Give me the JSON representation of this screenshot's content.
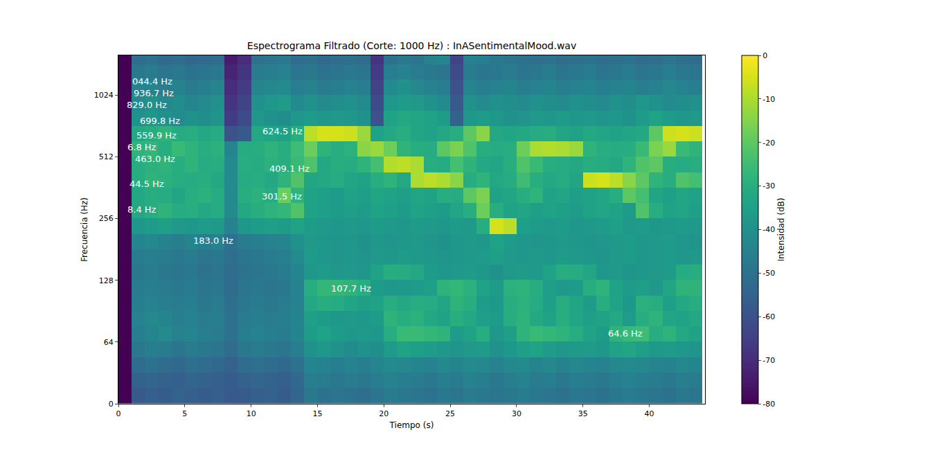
{
  "chart_data": {
    "type": "heatmap",
    "title": "Espectrograma Filtrado (Corte: 1000 Hz) : InASentimentalMood.wav",
    "x_label": "Tiempo (s)",
    "y_label": "Frecuencia (Hz)",
    "log": "y",
    "xlim": [
      0,
      44.2
    ],
    "ylim": [
      0,
      1600
    ],
    "xticks": [
      0,
      5,
      10,
      15,
      20,
      25,
      30,
      35,
      40
    ],
    "yticks": [
      0,
      64,
      128,
      256,
      512,
      1024
    ],
    "colorbar": {
      "label": "Intensidad (dB)",
      "range": [
        -80,
        0
      ],
      "ticks": [
        -80,
        -70,
        -60,
        -50,
        -40,
        -30,
        -20,
        -10,
        0
      ]
    },
    "x": [
      0.5,
      1.5,
      2.5,
      3.5,
      4.5,
      5.5,
      6.5,
      7.5,
      8.5,
      9.5,
      10.5,
      11.5,
      12.5,
      13.5,
      14.5,
      15.5,
      16.5,
      17.5,
      18.5,
      19.5,
      20.5,
      21.5,
      22.5,
      23.5,
      24.5,
      25.5,
      26.5,
      27.5,
      28.5,
      29.5,
      30.5,
      31.5,
      32.5,
      33.5,
      34.5,
      35.5,
      36.5,
      37.5,
      38.5,
      39.5,
      40.5,
      41.5,
      42.5,
      43.5
    ],
    "y": [
      8,
      24,
      40,
      56,
      69.8,
      83.0,
      98.7,
      117.4,
      139.6,
      166.0,
      197.4,
      234.8,
      279.2,
      332.0,
      394.8,
      469.5,
      558.4,
      664.0,
      789.6,
      939.0,
      1116.7,
      1328.0,
      1579.3
    ],
    "values": [
      [
        -80,
        -58,
        -56,
        -57,
        -55,
        -56,
        -57,
        -56,
        -58,
        -57,
        -56,
        -55,
        -57,
        -54,
        -48,
        -50,
        -49,
        -50,
        -51,
        -49,
        -47,
        -48,
        -49,
        -50,
        -48,
        -49,
        -47,
        -48,
        -49,
        -48,
        -47,
        -48,
        -49,
        -50,
        -48,
        -49,
        -50,
        -48,
        -47,
        -48,
        -49,
        -50,
        -48,
        -49
      ],
      [
        -80,
        -55,
        -54,
        -55,
        -56,
        -54,
        -55,
        -56,
        -57,
        -55,
        -54,
        -55,
        -56,
        -53,
        -46,
        -47,
        -48,
        -47,
        -48,
        -46,
        -45,
        -46,
        -47,
        -48,
        -46,
        -47,
        -45,
        -46,
        -48,
        -46,
        -45,
        -47,
        -46,
        -48,
        -46,
        -47,
        -48,
        -46,
        -45,
        -46,
        -47,
        -48,
        -46,
        -47
      ],
      [
        -80,
        -52,
        -50,
        -52,
        -53,
        -51,
        -52,
        -53,
        -55,
        -52,
        -51,
        -52,
        -53,
        -50,
        -44,
        -45,
        -46,
        -45,
        -46,
        -44,
        -42,
        -43,
        -44,
        -45,
        -43,
        -44,
        -42,
        -43,
        -45,
        -43,
        -42,
        -44,
        -43,
        -45,
        -43,
        -44,
        -45,
        -43,
        -42,
        -43,
        -44,
        -45,
        -43,
        -44
      ],
      [
        -80,
        -48,
        -46,
        -47,
        -49,
        -47,
        -48,
        -49,
        -52,
        -48,
        -47,
        -48,
        -49,
        -46,
        -40,
        -38,
        -40,
        -42,
        -40,
        -41,
        -36,
        -34,
        -35,
        -36,
        -38,
        -39,
        -37,
        -36,
        -40,
        -38,
        -35,
        -34,
        -36,
        -38,
        -37,
        -36,
        -38,
        -34,
        -33,
        -35,
        -37,
        -36,
        -38,
        -39
      ],
      [
        -80,
        -46,
        -44,
        -42,
        -45,
        -44,
        -46,
        -47,
        -50,
        -46,
        -45,
        -46,
        -47,
        -44,
        -36,
        -34,
        -36,
        -38,
        -37,
        -38,
        -30,
        -26,
        -26,
        -27,
        -28,
        -36,
        -34,
        -30,
        -38,
        -35,
        -28,
        -26,
        -27,
        -28,
        -30,
        -34,
        -36,
        -28,
        -26,
        -25,
        -30,
        -28,
        -32,
        -34
      ],
      [
        -80,
        -45,
        -43,
        -44,
        -46,
        -45,
        -47,
        -46,
        -50,
        -47,
        -46,
        -47,
        -46,
        -44,
        -35,
        -36,
        -38,
        -37,
        -38,
        -36,
        -28,
        -30,
        -29,
        -32,
        -34,
        -30,
        -32,
        -35,
        -36,
        -30,
        -28,
        -32,
        -34,
        -30,
        -33,
        -35,
        -34,
        -32,
        -36,
        -30,
        -28,
        -33,
        -34,
        -32
      ],
      [
        -80,
        -46,
        -45,
        -46,
        -47,
        -46,
        -48,
        -47,
        -51,
        -48,
        -47,
        -48,
        -47,
        -45,
        -32,
        -30,
        -31,
        -33,
        -35,
        -34,
        -30,
        -32,
        -30,
        -31,
        -33,
        -28,
        -30,
        -36,
        -38,
        -30,
        -29,
        -31,
        -35,
        -30,
        -33,
        -36,
        -30,
        -34,
        -38,
        -29,
        -30,
        -35,
        -32,
        -30
      ],
      [
        -80,
        -47,
        -46,
        -47,
        -48,
        -47,
        -49,
        -48,
        -52,
        -49,
        -48,
        -49,
        -48,
        -45,
        -30,
        -27,
        -27,
        -28,
        -30,
        -36,
        -38,
        -37,
        -36,
        -35,
        -28,
        -27,
        -29,
        -34,
        -36,
        -29,
        -28,
        -30,
        -35,
        -37,
        -36,
        -30,
        -28,
        -34,
        -36,
        -35,
        -37,
        -33,
        -28,
        -28
      ],
      [
        -80,
        -48,
        -47,
        -48,
        -49,
        -48,
        -50,
        -49,
        -52,
        -50,
        -49,
        -48,
        -47,
        -44,
        -38,
        -36,
        -38,
        -37,
        -38,
        -34,
        -30,
        -31,
        -32,
        -36,
        -38,
        -37,
        -36,
        -38,
        -40,
        -37,
        -36,
        -37,
        -34,
        -30,
        -31,
        -33,
        -38,
        -37,
        -39,
        -38,
        -37,
        -36,
        -31,
        -30
      ],
      [
        -80,
        -47,
        -46,
        -47,
        -48,
        -47,
        -49,
        -48,
        -51,
        -49,
        -48,
        -47,
        -46,
        -42,
        -36,
        -38,
        -39,
        -38,
        -39,
        -37,
        -38,
        -36,
        -37,
        -38,
        -39,
        -38,
        -37,
        -36,
        -35,
        -37,
        -38,
        -37,
        -38,
        -36,
        -37,
        -38,
        -39,
        -37,
        -36,
        -38,
        -37,
        -36,
        -38,
        -37
      ],
      [
        -80,
        -44,
        -43,
        -45,
        -46,
        -44,
        -46,
        -45,
        -50,
        -47,
        -46,
        -45,
        -44,
        -40,
        -37,
        -38,
        -39,
        -38,
        -40,
        -38,
        -39,
        -38,
        -37,
        -39,
        -40,
        -38,
        -37,
        -38,
        -34,
        -36,
        -38,
        -39,
        -38,
        -37,
        -38,
        -39,
        -38,
        -37,
        -36,
        -38,
        -37,
        -36,
        -38,
        -39
      ],
      [
        -80,
        -38,
        -36,
        -35,
        -37,
        -38,
        -36,
        -37,
        -45,
        -38,
        -36,
        -35,
        -36,
        -34,
        -36,
        -37,
        -38,
        -37,
        -38,
        -36,
        -37,
        -38,
        -36,
        -37,
        -38,
        -36,
        -37,
        -30,
        -5,
        -8,
        -35,
        -36,
        -37,
        -36,
        -38,
        -37,
        -36,
        -35,
        -37,
        -36,
        -38,
        -37,
        -36,
        -37
      ],
      [
        -80,
        -32,
        -30,
        -28,
        -31,
        -30,
        -32,
        -31,
        -42,
        -32,
        -30,
        -28,
        -27,
        -22,
        -34,
        -35,
        -36,
        -35,
        -36,
        -34,
        -35,
        -36,
        -34,
        -35,
        -36,
        -33,
        -30,
        -18,
        -30,
        -34,
        -33,
        -35,
        -34,
        -35,
        -36,
        -34,
        -33,
        -34,
        -36,
        -22,
        -30,
        -34,
        -33,
        -35
      ],
      [
        -80,
        -32,
        -30,
        -31,
        -33,
        -30,
        -29,
        -31,
        -42,
        -30,
        -29,
        -31,
        -18,
        -28,
        -34,
        -35,
        -36,
        -34,
        -35,
        -33,
        -34,
        -35,
        -33,
        -34,
        -30,
        -31,
        -20,
        -16,
        -34,
        -33,
        -30,
        -28,
        -34,
        -33,
        -35,
        -34,
        -33,
        -30,
        -20,
        -24,
        -33,
        -35,
        -33,
        -34
      ],
      [
        -80,
        -30,
        -28,
        -29,
        -30,
        -31,
        -30,
        -32,
        -42,
        -31,
        -30,
        -32,
        -28,
        -22,
        -33,
        -32,
        -31,
        -33,
        -34,
        -30,
        -28,
        -32,
        -10,
        -8,
        -10,
        -14,
        -30,
        -28,
        -32,
        -31,
        -25,
        -30,
        -32,
        -31,
        -33,
        -6,
        -5,
        -8,
        -14,
        -20,
        -28,
        -30,
        -22,
        -24
      ],
      [
        -80,
        -30,
        -29,
        -28,
        -30,
        -28,
        -31,
        -30,
        -42,
        -30,
        -31,
        -29,
        -30,
        -26,
        -22,
        -32,
        -30,
        -31,
        -28,
        -24,
        -9,
        -8,
        -10,
        -30,
        -31,
        -24,
        -28,
        -32,
        -33,
        -30,
        -22,
        -26,
        -30,
        -31,
        -32,
        -30,
        -31,
        -32,
        -28,
        -22,
        -20,
        -30,
        -31,
        -30
      ],
      [
        -80,
        -28,
        -27,
        -30,
        -26,
        -28,
        -30,
        -29,
        -44,
        -31,
        -30,
        -28,
        -30,
        -25,
        -18,
        -28,
        -30,
        -29,
        -14,
        -12,
        -18,
        -28,
        -30,
        -31,
        -20,
        -16,
        -22,
        -30,
        -31,
        -30,
        -18,
        -10,
        -9,
        -10,
        -12,
        -28,
        -30,
        -31,
        -30,
        -26,
        -16,
        -12,
        -26,
        -28
      ],
      [
        -80,
        -32,
        -30,
        -28,
        -31,
        -30,
        -32,
        -31,
        -60,
        -58,
        -32,
        -33,
        -34,
        -30,
        -8,
        -5,
        -5,
        -6,
        -12,
        -34,
        -32,
        -30,
        -33,
        -34,
        -32,
        -30,
        -20,
        -14,
        -32,
        -33,
        -32,
        -31,
        -30,
        -33,
        -34,
        -32,
        -33,
        -34,
        -33,
        -32,
        -20,
        -6,
        -5,
        -6
      ],
      [
        -80,
        -40,
        -38,
        -40,
        -42,
        -40,
        -41,
        -39,
        -66,
        -62,
        -38,
        -40,
        -41,
        -38,
        -36,
        -38,
        -37,
        -38,
        -40,
        -60,
        -34,
        -32,
        -33,
        -34,
        -36,
        -55,
        -38,
        -36,
        -38,
        -40,
        -39,
        -37,
        -38,
        -36,
        -38,
        -37,
        -39,
        -38,
        -40,
        -36,
        -34,
        -36,
        -38,
        -37
      ],
      [
        -80,
        -42,
        -40,
        -43,
        -41,
        -44,
        -42,
        -40,
        -68,
        -64,
        -40,
        -38,
        -36,
        -42,
        -40,
        -42,
        -41,
        -40,
        -42,
        -62,
        -38,
        -36,
        -37,
        -40,
        -42,
        -58,
        -40,
        -42,
        -40,
        -41,
        -42,
        -40,
        -41,
        -42,
        -40,
        -41,
        -42,
        -40,
        -41,
        -38,
        -40,
        -42,
        -41,
        -40
      ],
      [
        -80,
        -45,
        -44,
        -46,
        -45,
        -47,
        -46,
        -44,
        -70,
        -66,
        -44,
        -43,
        -42,
        -46,
        -45,
        -47,
        -46,
        -45,
        -46,
        -64,
        -42,
        -40,
        -43,
        -45,
        -46,
        -60,
        -44,
        -46,
        -45,
        -44,
        -46,
        -45,
        -44,
        -46,
        -45,
        -44,
        -46,
        -45,
        -44,
        -46,
        -45,
        -43,
        -45,
        -46
      ],
      [
        -80,
        -48,
        -47,
        -49,
        -48,
        -50,
        -49,
        -48,
        -72,
        -68,
        -47,
        -46,
        -45,
        -49,
        -48,
        -50,
        -49,
        -48,
        -49,
        -66,
        -46,
        -45,
        -47,
        -48,
        -49,
        -62,
        -47,
        -49,
        -48,
        -47,
        -49,
        -48,
        -47,
        -49,
        -48,
        -47,
        -49,
        -48,
        -47,
        -49,
        -48,
        -46,
        -48,
        -49
      ],
      [
        -80,
        -52,
        -50,
        -53,
        -52,
        -54,
        -53,
        -52,
        -74,
        -70,
        -50,
        -49,
        -48,
        -52,
        -51,
        -53,
        -52,
        -51,
        -52,
        -68,
        -50,
        -48,
        -49,
        -45,
        -44,
        -64,
        -45,
        -46,
        -48,
        -49,
        -50,
        -51,
        -50,
        -52,
        -51,
        -50,
        -52,
        -51,
        -50,
        -52,
        -51,
        -49,
        -51,
        -52
      ]
    ],
    "annotations": [
      {
        "text": "044.4 Hz",
        "x": 2.56,
        "y": 1195
      },
      {
        "text": "936.7 Hz",
        "x": 2.66,
        "y": 1048
      },
      {
        "text": "829.0 Hz",
        "x": 2.14,
        "y": 918
      },
      {
        "text": "699.8 Hz",
        "x": 3.13,
        "y": 769
      },
      {
        "text": "559.9 Hz",
        "x": 2.87,
        "y": 653
      },
      {
        "text": "6.8 Hz",
        "x": 1.77,
        "y": 573
      },
      {
        "text": "463.0 Hz",
        "x": 2.77,
        "y": 502
      },
      {
        "text": "44.5 Hz",
        "x": 2.14,
        "y": 377
      },
      {
        "text": "8.4 Hz",
        "x": 1.77,
        "y": 283
      },
      {
        "text": "183.0 Hz",
        "x": 7.15,
        "y": 200
      },
      {
        "text": "624.5 Hz",
        "x": 12.37,
        "y": 684
      },
      {
        "text": "409.1 Hz",
        "x": 12.89,
        "y": 447
      },
      {
        "text": "301.5 Hz",
        "x": 12.32,
        "y": 328
      },
      {
        "text": "107.7 Hz",
        "x": 17.54,
        "y": 117
      },
      {
        "text": "64.6 Hz",
        "x": 38.2,
        "y": 70.2
      }
    ]
  }
}
